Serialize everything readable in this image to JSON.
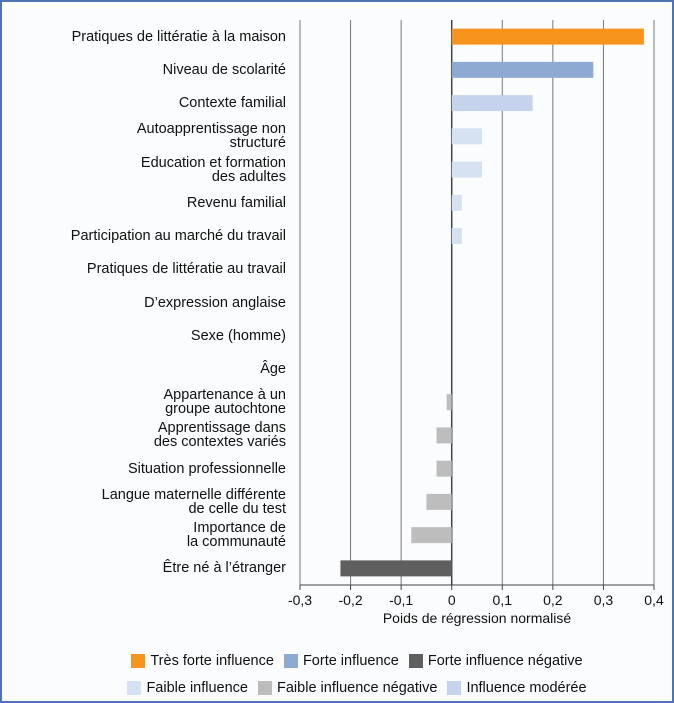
{
  "chart_data": {
    "type": "bar",
    "orientation": "horizontal",
    "categories": [
      "Pratiques de littératie à la maison",
      "Niveau de scolarité",
      "Contexte familial",
      "Autoapprentissage non\nstructuré",
      "Education et formation\ndes adultes",
      "Revenu familial",
      "Participation au marché du travail",
      "Pratiques de littératie au travail",
      "D’expression anglaise",
      "Sexe (homme)",
      "Âge",
      "Appartenance à un\ngroupe autochtone",
      "Apprentissage dans\ndes contextes variés",
      "Situation professionnelle",
      "Langue maternelle différente\nde celle du test",
      "Importance de\nla communauté",
      "Être né à l’étranger"
    ],
    "values": [
      0.38,
      0.28,
      0.16,
      0.06,
      0.06,
      0.02,
      0.02,
      0,
      0,
      0,
      0,
      -0.01,
      -0.03,
      -0.03,
      -0.05,
      -0.08,
      -0.22
    ],
    "colors": [
      "#f7941d",
      "#8eaad3",
      "#c6d3ec",
      "#d6e2f2",
      "#d6e2f2",
      "#d6e2f2",
      "#d6e2f2",
      "#d6e2f2",
      "#d6e2f2",
      "#d6e2f2",
      "#d6e2f2",
      "#bdbdbd",
      "#bdbdbd",
      "#bdbdbd",
      "#bdbdbd",
      "#bdbdbd",
      "#5f5f5f"
    ],
    "xlabel": "Poids de régression normalisé",
    "xlim": [
      -0.3,
      0.4
    ],
    "xticks": [
      {
        "value": -0.3,
        "label": "-0,3"
      },
      {
        "value": -0.2,
        "label": "-0,2"
      },
      {
        "value": -0.1,
        "label": "-0,1"
      },
      0,
      {
        "value": 0.1,
        "label": "0,1"
      },
      {
        "value": 0.2,
        "label": "0,2"
      },
      {
        "value": 0.3,
        "label": "0,3"
      },
      {
        "value": 0.4,
        "label": "0,4"
      }
    ],
    "grid": true,
    "legend": [
      [
        {
          "name": "Très forte influence",
          "color": "#f7941d"
        },
        {
          "name": "Forte influence",
          "color": "#8eaad3"
        },
        {
          "name": "Forte influence négative",
          "color": "#5f5f5f"
        }
      ],
      [
        {
          "name": "Faible influence",
          "color": "#d6e2f2"
        },
        {
          "name": "Faible influence négative",
          "color": "#bdbdbd"
        },
        {
          "name": "Influence modérée",
          "color": "#c6d3ec"
        }
      ]
    ]
  }
}
